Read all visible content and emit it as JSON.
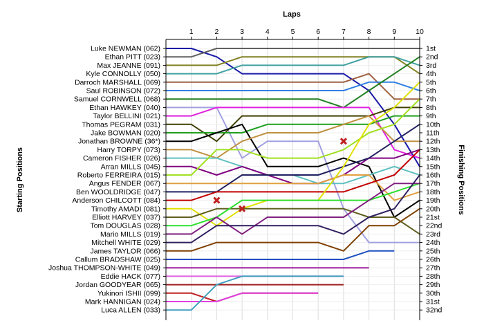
{
  "chart_data": {
    "type": "line",
    "title": "Laps",
    "ylabel_left": "Starting Positions",
    "ylabel_right": "Finishing Positions",
    "x": [
      0,
      1,
      2,
      3,
      4,
      5,
      6,
      7,
      8,
      9,
      10
    ],
    "x_tick_labels": [
      "1",
      "2",
      "3",
      "4",
      "5",
      "6",
      "7",
      "8",
      "9",
      "10"
    ],
    "ylim": [
      1,
      32
    ],
    "grid": true,
    "starting_labels": [
      "Luke NEWMAN (062)",
      "Ethan PITT (023)",
      "Max JEANNE (091)",
      "Kyle CONNOLLY (050)",
      "Darroch MARSHALL (069)",
      "Saul ROBINSON (072)",
      "Samuel CORNWELL (068)",
      "Ethan HAWKEY (040)",
      "Taylor BELLINI (021)",
      "Thomas PEGRAM (031)",
      "Jake BOWMAN (020)",
      "Jonathan BROWNE (36*)",
      "Harry TORPY (073)",
      "Cameron FISHER (026)",
      "Arran MILLS (045)",
      "Roberto FERREIRA (015)",
      "Angus FENDER (067)",
      "Ben WOOLDRIDGE (047)",
      "Anderson CHILCOTT (084)",
      "Timothy AMADI (081)",
      "Elliott HARVEY (037)",
      "Tom DOUGLAS (028)",
      "Mario MILLS (019)",
      "Mitchell WHITE (029)",
      "James TAYLOR (066)",
      "Callum BRADSHAW (025)",
      "Joshua THOMPSON-WHITE (049)",
      "Eddie HACK (077)",
      "Jordan GOODYEAR (065)",
      "Yukinori ISHII (099)",
      "Mark HANNIGAN (024)",
      "Luca ALLEN (033)"
    ],
    "finishing_labels": [
      "1st",
      "2nd",
      "3rd",
      "4th",
      "5th",
      "6th",
      "7th",
      "8th",
      "9th",
      "10th",
      "11th",
      "12th",
      "13th",
      "14th",
      "15th",
      "16th",
      "17th",
      "18th",
      "19th",
      "20th",
      "21st",
      "22nd",
      "23rd",
      "24th",
      "25th",
      "26th",
      "27th",
      "28th",
      "29th",
      "30th",
      "31st",
      "32nd"
    ],
    "series": [
      {
        "color": "#1a1aa8",
        "values": [
          1,
          1,
          2,
          4,
          4,
          4,
          4,
          4,
          6,
          10,
          15
        ]
      },
      {
        "color": "#606060",
        "values": [
          2,
          2,
          1,
          1,
          1,
          1,
          1,
          1,
          1,
          1,
          1
        ]
      },
      {
        "color": "#808020",
        "values": [
          3,
          3,
          3,
          2,
          2,
          2,
          2,
          2,
          2,
          2,
          4
        ]
      },
      {
        "color": "#40a0a0",
        "values": [
          4,
          4,
          4,
          3,
          3,
          3,
          3,
          3,
          2,
          2,
          3
        ]
      },
      {
        "color": "#a06040",
        "values": [
          5,
          5,
          5,
          5,
          5,
          5,
          5,
          5,
          4,
          7,
          7
        ]
      },
      {
        "color": "#3080e0",
        "values": [
          6,
          6,
          6,
          6,
          6,
          6,
          6,
          6,
          5,
          5,
          6
        ]
      },
      {
        "color": "#208020",
        "values": [
          7,
          7,
          7,
          7,
          7,
          7,
          7,
          8,
          6,
          4,
          2
        ]
      },
      {
        "color": "#a0a0e0",
        "values": [
          8,
          8,
          8,
          14,
          12,
          12,
          12,
          20,
          24,
          24,
          24
        ]
      },
      {
        "color": "#e020e0",
        "values": [
          9,
          9,
          8,
          8,
          8,
          8,
          8,
          8,
          8,
          13,
          14
        ]
      },
      {
        "color": "#404000",
        "values": [
          10,
          10,
          12,
          9,
          9,
          9,
          9,
          9,
          9,
          8,
          8
        ]
      },
      {
        "color": "#20a020",
        "values": [
          11,
          11,
          11,
          11,
          10,
          10,
          10,
          10,
          10,
          9,
          9
        ]
      },
      {
        "color": "#000000",
        "values": [
          12,
          12,
          11,
          10,
          15,
          15,
          15,
          14,
          15,
          21,
          19
        ]
      },
      {
        "color": "#c09040",
        "values": [
          13,
          13,
          14,
          12,
          11,
          11,
          11,
          10,
          9,
          12,
          12
        ]
      },
      {
        "color": "#60c0c0",
        "values": [
          14,
          14,
          14,
          15,
          16,
          16,
          17,
          17,
          16,
          15,
          16
        ]
      },
      {
        "color": "#800080",
        "values": [
          15,
          15,
          16,
          15,
          16,
          17,
          17,
          16,
          14,
          14,
          13
        ]
      },
      {
        "color": "#a0e020",
        "values": [
          16,
          16,
          13,
          13,
          14,
          14,
          14,
          13,
          11,
          10,
          7
        ]
      },
      {
        "color": "#e0a040",
        "values": [
          17,
          17,
          17,
          17,
          17,
          17,
          17,
          16,
          16,
          19,
          18
        ]
      },
      {
        "color": "#202060",
        "values": [
          18,
          18,
          18,
          16,
          16,
          16,
          16,
          15,
          14,
          12,
          10
        ]
      },
      {
        "color": "#c00000",
        "values": [
          19,
          19,
          18,
          18,
          18,
          18,
          18,
          18,
          17,
          16,
          13
        ]
      },
      {
        "color": "#e0e000",
        "values": [
          20,
          20,
          22,
          20,
          19,
          19,
          19,
          15,
          10,
          8,
          5
        ]
      },
      {
        "color": "#606020",
        "values": [
          21,
          21,
          20,
          20,
          20,
          20,
          20,
          20,
          21,
          21,
          23
        ]
      },
      {
        "color": "#30e030",
        "values": [
          22,
          22,
          21,
          19,
          19,
          19,
          19,
          19,
          19,
          18,
          17
        ]
      },
      {
        "color": "#802080",
        "values": [
          23,
          23,
          21,
          23,
          21,
          21,
          21,
          21,
          19,
          17,
          17
        ]
      },
      {
        "color": "#302060",
        "values": [
          24,
          24,
          22,
          22,
          22,
          22,
          22,
          23,
          21,
          20,
          16
        ]
      },
      {
        "color": "#804000",
        "values": [
          25,
          25,
          24,
          24,
          24,
          24,
          24,
          25,
          22,
          22,
          20
        ]
      },
      {
        "color": "#2050c0",
        "values": [
          26,
          26,
          26,
          26,
          26,
          26,
          26,
          26,
          25,
          25,
          null
        ]
      },
      {
        "color": "#a020a0",
        "values": [
          27,
          27,
          27,
          27,
          27,
          27,
          27,
          27,
          27,
          null,
          null
        ]
      },
      {
        "color": "#e060e0",
        "values": [
          28,
          28,
          28,
          28,
          28,
          28,
          28,
          28,
          null,
          null,
          null
        ]
      },
      {
        "color": "#a02020",
        "values": [
          29,
          29,
          29,
          29,
          29,
          29,
          29,
          29,
          null,
          null,
          null
        ]
      },
      {
        "color": "#c02020",
        "values": [
          30,
          30,
          31,
          30,
          30,
          30,
          30,
          null,
          null,
          null,
          null
        ]
      },
      {
        "color": "#e040e0",
        "values": [
          31,
          31,
          31,
          30,
          30,
          30,
          30,
          null,
          null,
          null,
          null
        ]
      },
      {
        "color": "#40a0c0",
        "values": [
          32,
          32,
          29,
          28,
          28,
          28,
          28,
          28,
          null,
          null,
          null
        ]
      }
    ],
    "markers": [
      {
        "x": 2,
        "y": 19.0,
        "symbol": "x",
        "color": "#c02020"
      },
      {
        "x": 3,
        "y": 20.0,
        "symbol": "x",
        "color": "#c02020"
      },
      {
        "x": 7,
        "y": 12.0,
        "symbol": "x",
        "color": "#c02020"
      }
    ]
  }
}
